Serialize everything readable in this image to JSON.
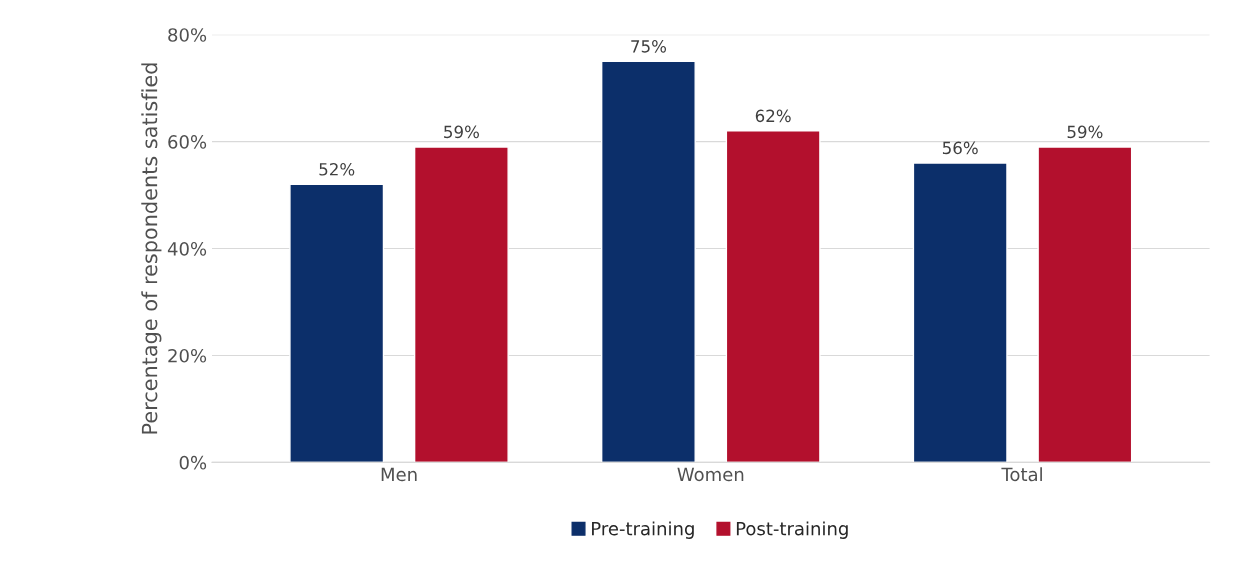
{
  "chart_data": {
    "type": "bar",
    "ylabel": "Percentage of respondents satisfied",
    "categories": [
      "Men",
      "Women",
      "Total"
    ],
    "series": [
      {
        "name": "Pre-training",
        "color": "#0c2f6a",
        "values": [
          52,
          75,
          56
        ],
        "value_labels": [
          "52%",
          "75%",
          "56%"
        ]
      },
      {
        "name": "Post-training",
        "color": "#b3102d",
        "values": [
          59,
          62,
          59
        ],
        "value_labels": [
          "59%",
          "62%",
          "59%"
        ]
      }
    ],
    "ylim": [
      0,
      80
    ],
    "yticks": [
      {
        "value": 0,
        "label": "0%"
      },
      {
        "value": 20,
        "label": "20%"
      },
      {
        "value": 40,
        "label": "40%"
      },
      {
        "value": 60,
        "label": "60%"
      },
      {
        "value": 80,
        "label": "80%"
      }
    ],
    "grid": "y",
    "legend": "bottom"
  }
}
